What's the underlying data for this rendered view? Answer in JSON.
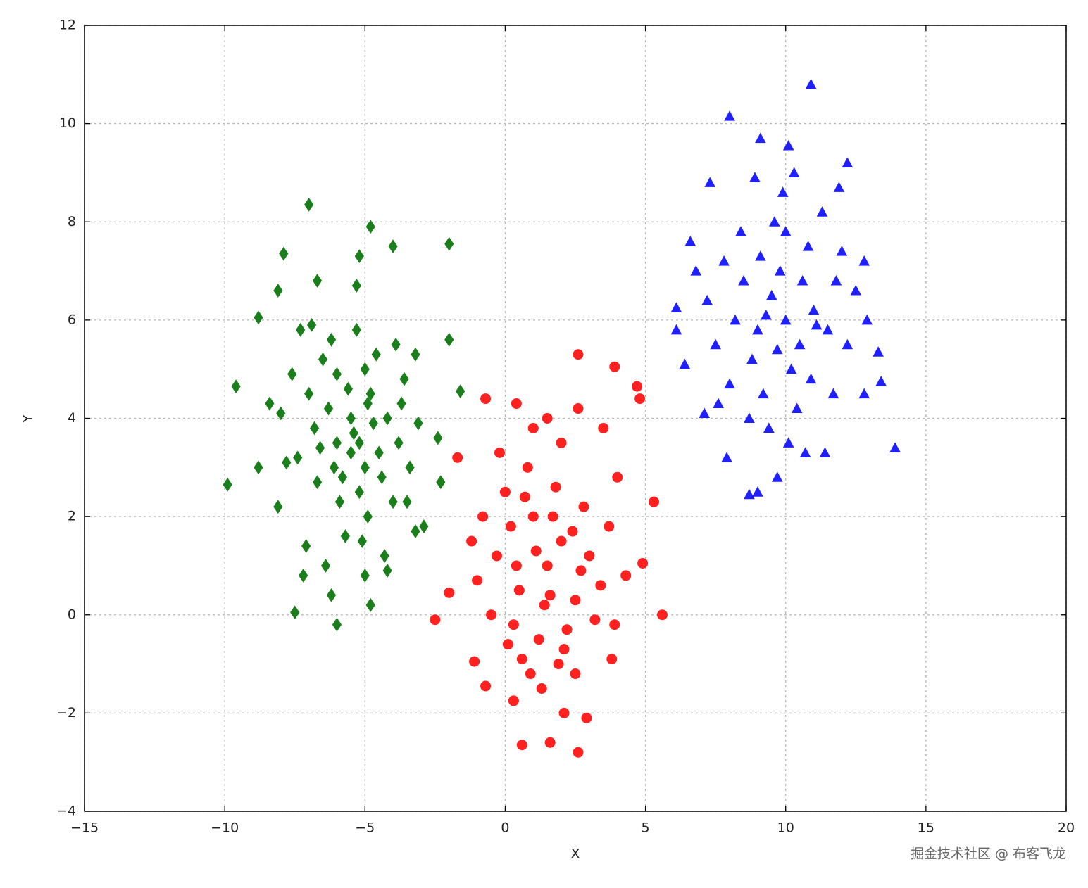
{
  "chart_data": {
    "type": "scatter",
    "x_label": "X",
    "y_label": "Y",
    "xlim": [
      -15,
      20
    ],
    "ylim": [
      -4,
      12
    ],
    "xticks": [
      {
        "value": -15,
        "label": "−15"
      },
      {
        "value": -10,
        "label": "−10"
      },
      {
        "value": -5,
        "label": "−5"
      },
      0,
      5,
      10,
      15,
      20
    ],
    "yticks": [
      {
        "value": -4,
        "label": "−4"
      },
      {
        "value": -2,
        "label": "−2"
      },
      0,
      2,
      4,
      6,
      8,
      10,
      12
    ],
    "grid": true,
    "watermark": "掘金技术社区 @ 布客飞龙",
    "series": [
      {
        "color": "#1a7f1a",
        "marker": "diamond",
        "x": [
          -7,
          -4.8,
          -2,
          -7.9,
          -4,
          -5.2,
          -8.8,
          -8.1,
          -2,
          -9.6,
          -9.9,
          -8.8,
          -8.1,
          -7.5,
          -6,
          -4.8,
          -1.6,
          -2.4,
          -2.3,
          -2.9,
          -7.2,
          -3.2,
          -6.7,
          -7.3,
          -7.8,
          -5.3,
          -3.2,
          -5.5,
          -6,
          -5,
          -4.8,
          -6.3,
          -5.2,
          -4.5,
          -6.8,
          -5.8,
          -4.2,
          -5,
          -6.5,
          -5.4,
          -4.9,
          -3.8,
          -7,
          -6.1,
          -5.6,
          -4.4,
          -3.6,
          -7.4,
          -5.3,
          -6.2,
          -4.7,
          -5.9,
          -4,
          -3.4,
          -7.6,
          -6.7,
          -5.1,
          -4.3,
          -6.4,
          -5.7,
          -3.9,
          -4.6,
          -8,
          -6.9,
          -5.5,
          -4.9,
          -3.1,
          -6,
          -5.2,
          -3.5,
          -5,
          -6.2,
          -7.1,
          -4.2,
          -8.4,
          -3.7,
          -6.6
        ],
        "values": [
          8.35,
          7.9,
          7.55,
          7.35,
          7.5,
          7.3,
          6.05,
          6.6,
          5.6,
          4.65,
          2.65,
          3,
          2.2,
          0.05,
          -0.2,
          0.2,
          4.55,
          3.6,
          2.7,
          1.8,
          0.8,
          1.7,
          6.8,
          5.8,
          3.1,
          6.7,
          5.3,
          4,
          3.5,
          3,
          4.5,
          4.2,
          2.5,
          3.3,
          3.8,
          2.8,
          4,
          5,
          5.2,
          3.7,
          2,
          3.5,
          4.5,
          3,
          4.6,
          2.8,
          4.8,
          3.2,
          5.8,
          5.6,
          3.9,
          2.3,
          2.3,
          3,
          4.9,
          2.7,
          1.5,
          1.2,
          1,
          1.6,
          5.5,
          5.3,
          4.1,
          5.9,
          3.3,
          4.3,
          3.9,
          4.9,
          3.5,
          2.3,
          0.8,
          0.4,
          1.4,
          0.9,
          4.3,
          4.3,
          3.4
        ]
      },
      {
        "color": "#ff2020",
        "marker": "circle",
        "x": [
          2.6,
          3.9,
          4.7,
          4.8,
          -0.7,
          0.4,
          -2.5,
          5.6,
          0.6,
          1.6,
          2.6,
          2.9,
          5.3,
          -1.7,
          -1.1,
          -0.7,
          0.3,
          2.1,
          4.9,
          -2,
          3.8,
          2.5,
          1.5,
          1,
          2,
          0.5,
          2.5,
          1.2,
          0.2,
          3,
          1.8,
          0.8,
          2.2,
          -0.3,
          1.6,
          2.8,
          0,
          1.3,
          3.4,
          0.6,
          2,
          -0.5,
          1,
          2.4,
          3.7,
          -0.8,
          0.3,
          1.9,
          3.2,
          1.1,
          0.7,
          2.7,
          4,
          -1.2,
          1.5,
          0.9,
          3.5,
          -0.2,
          2.1,
          4.3,
          1.7,
          0.4,
          2.6,
          -1,
          3.9,
          1.4,
          0.1
        ],
        "values": [
          5.3,
          5.05,
          4.65,
          4.4,
          4.4,
          4.3,
          -0.1,
          0,
          -2.65,
          -2.6,
          -2.8,
          -2.1,
          2.3,
          3.2,
          -0.95,
          -1.45,
          -1.75,
          -2,
          1.05,
          0.45,
          -0.9,
          -1.2,
          1,
          2,
          1.5,
          0.5,
          0.3,
          -0.5,
          1.8,
          1.2,
          2.6,
          3,
          -0.3,
          1.2,
          0.4,
          2.2,
          2.5,
          -1.5,
          0.6,
          -0.9,
          3.5,
          0,
          3.8,
          1.7,
          1.8,
          2,
          -0.2,
          -1,
          -0.1,
          1.3,
          2.4,
          0.9,
          2.8,
          1.5,
          4,
          -1.2,
          3.8,
          3.3,
          -0.7,
          0.8,
          2,
          1,
          4.2,
          0.7,
          -0.2,
          0.2,
          -0.6
        ]
      },
      {
        "color": "#2020ff",
        "marker": "triangle",
        "x": [
          10.9,
          8,
          9.1,
          10.1,
          12.2,
          7.3,
          13.9,
          9.7,
          8.7,
          9,
          7.9,
          6.1,
          6.1,
          6.4,
          13.4,
          13.3,
          12.9,
          12.8,
          11.4,
          7.1,
          10,
          9.5,
          10.5,
          9,
          11,
          9.8,
          10.2,
          8.5,
          11.5,
          10.8,
          9.2,
          10.4,
          8.2,
          11.8,
          9.6,
          10.9,
          8.8,
          12.2,
          9.4,
          10.1,
          7.8,
          11.3,
          9.9,
          8.4,
          12.5,
          7.5,
          10.6,
          9.1,
          11.7,
          8,
          12,
          10.3,
          7.2,
          9.7,
          11.1,
          8.7,
          10.7,
          6.8,
          12.8,
          11.9,
          9.3,
          10,
          8.9,
          7.6,
          6.6
        ],
        "values": [
          10.8,
          10.15,
          9.7,
          9.55,
          9.2,
          8.8,
          3.4,
          2.8,
          2.45,
          2.5,
          3.2,
          6.25,
          5.8,
          5.1,
          4.75,
          5.35,
          6,
          7.2,
          3.3,
          4.1,
          6,
          6.5,
          5.5,
          5.8,
          6.2,
          7,
          5,
          6.8,
          5.8,
          7.5,
          4.5,
          4.2,
          6,
          6.8,
          8,
          4.8,
          5.2,
          5.5,
          3.8,
          3.5,
          7.2,
          8.2,
          8.6,
          7.8,
          6.6,
          5.5,
          6.8,
          7.3,
          4.5,
          4.7,
          7.4,
          9,
          6.4,
          5.4,
          5.9,
          4,
          3.3,
          7,
          4.5,
          8.7,
          6.1,
          7.8,
          8.9,
          4.3,
          7.6
        ]
      }
    ]
  }
}
